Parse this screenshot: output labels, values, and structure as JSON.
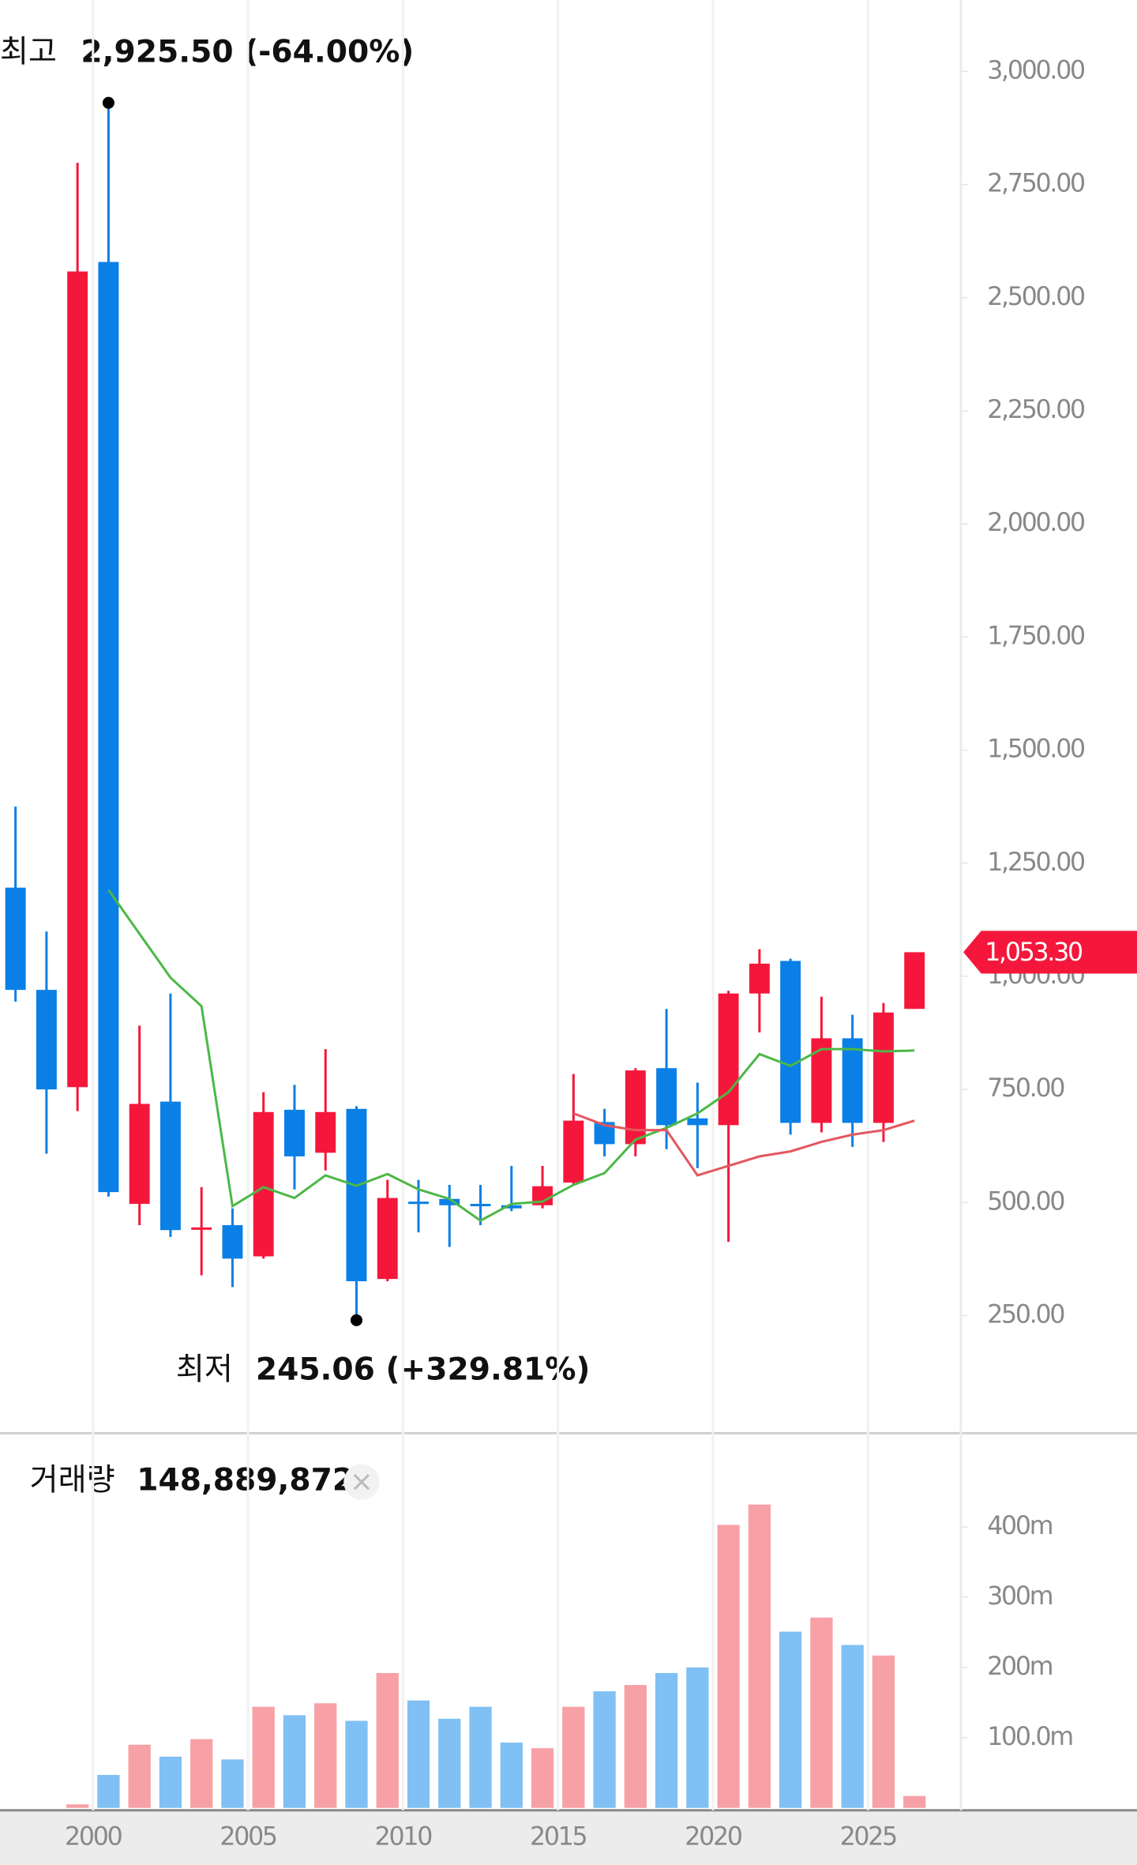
{
  "chart_data": [
    {
      "type": "candlestick",
      "x": [
        1997,
        1998,
        1999,
        2000,
        2001,
        2002,
        2003,
        2004,
        2005,
        2006,
        2007,
        2008,
        2009,
        2010,
        2011,
        2012,
        2013,
        2014,
        2015,
        2016,
        2017,
        2018,
        2019,
        2020,
        2021,
        2022,
        2023,
        2024,
        2025,
        2026
      ],
      "open": [
        1196,
        970,
        755,
        2579,
        497,
        723,
        440,
        450,
        381,
        705,
        610,
        707,
        331,
        502,
        508,
        497,
        494,
        494,
        544,
        678,
        629,
        797,
        686,
        671,
        962,
        1034,
        676,
        863,
        676,
        928
      ],
      "high": [
        1375,
        1099,
        2798,
        2925.5,
        891,
        962,
        534,
        487,
        744,
        760,
        839,
        713,
        550,
        550,
        539,
        539,
        581,
        581,
        784,
        707,
        797,
        928,
        765,
        968,
        1060,
        1039,
        955,
        915,
        941,
        1049
      ],
      "low": [
        944,
        608,
        702,
        513,
        450,
        424,
        339,
        313,
        376,
        529,
        571,
        245.06,
        326,
        434,
        402,
        450,
        481,
        487,
        539,
        602,
        602,
        618,
        576,
        413,
        876,
        650,
        655,
        623,
        634,
        928
      ],
      "close": [
        970,
        750,
        2558,
        523,
        718,
        439,
        445,
        376,
        700,
        602,
        700,
        326,
        510,
        497,
        494,
        492,
        487,
        536,
        681,
        629,
        792,
        671,
        671,
        962,
        1028,
        676,
        863,
        676,
        920,
        1053.3
      ],
      "up_color": "#f5173b",
      "down_color": "#0a7fe6",
      "lines": [
        {
          "color": "#4cb847",
          "values": [
            null,
            null,
            null,
            1191,
            1094,
            997,
            934,
            492,
            534,
            510,
            560,
            537,
            563,
            529,
            508,
            460,
            497,
            502,
            539,
            565,
            639,
            665,
            697,
            744,
            828,
            802,
            839,
            839,
            834,
            836
          ]
        },
        {
          "color": "#e3575e",
          "values": [
            null,
            null,
            null,
            null,
            null,
            null,
            null,
            null,
            null,
            null,
            null,
            null,
            null,
            null,
            null,
            null,
            null,
            null,
            697,
            671,
            660,
            660,
            560,
            581,
            602,
            613,
            634,
            650,
            660,
            681
          ]
        }
      ],
      "xlim": [
        1997,
        2028
      ],
      "xticks": [
        2000,
        2005,
        2010,
        2015,
        2020,
        2025
      ],
      "ylim": [
        -10,
        3158
      ],
      "yticks": [
        {
          "value": 250,
          "label": "250.00"
        },
        {
          "value": 500,
          "label": "500.00"
        },
        {
          "value": 750,
          "label": "750.00"
        },
        {
          "value": 1000,
          "label": "1,000.00"
        },
        {
          "value": 1250,
          "label": "1,250.00"
        },
        {
          "value": 1500,
          "label": "1,500.00"
        },
        {
          "value": 1750,
          "label": "1,750.00"
        },
        {
          "value": 2000,
          "label": "2,000.00"
        },
        {
          "value": 2250,
          "label": "2,250.00"
        },
        {
          "value": 2500,
          "label": "2,500.00"
        },
        {
          "value": 2750,
          "label": "2,750.00"
        },
        {
          "value": 3000,
          "label": "3,000.00"
        }
      ],
      "high_marker": {
        "label": "최고",
        "text": "2,925.50 (-64.00%)",
        "x": 2000,
        "value": 2925.5
      },
      "low_marker": {
        "label": "최저",
        "text": "245.06 (+329.81%)",
        "x": 2008,
        "value": 245.06
      },
      "last_price": {
        "value": 1053.3,
        "label": "1,053.30",
        "color": "#f5173b"
      }
    },
    {
      "type": "bar",
      "title": "거래량",
      "title_value": "148,889,872",
      "x": [
        1997,
        1998,
        1999,
        2000,
        2001,
        2002,
        2003,
        2004,
        2005,
        2006,
        2007,
        2008,
        2009,
        2010,
        2011,
        2012,
        2013,
        2014,
        2015,
        2016,
        2017,
        2018,
        2019,
        2020,
        2021,
        2022,
        2023,
        2024,
        2025,
        2026
      ],
      "values": [
        null,
        null,
        5,
        47,
        90,
        73,
        98,
        69,
        144,
        132,
        149,
        124,
        192,
        153,
        127,
        144,
        93,
        85,
        144,
        166,
        175,
        192,
        200,
        403,
        432,
        251,
        271,
        232,
        217,
        17
      ],
      "up_color": "#f7a0a6",
      "down_color": "#80c0f4",
      "ylim": [
        0,
        525
      ],
      "yticks": [
        {
          "value": 100,
          "label": "100.0m"
        },
        {
          "value": 200,
          "label": "200m"
        },
        {
          "value": 300,
          "label": "300m"
        },
        {
          "value": 400,
          "label": "400m"
        }
      ]
    }
  ]
}
